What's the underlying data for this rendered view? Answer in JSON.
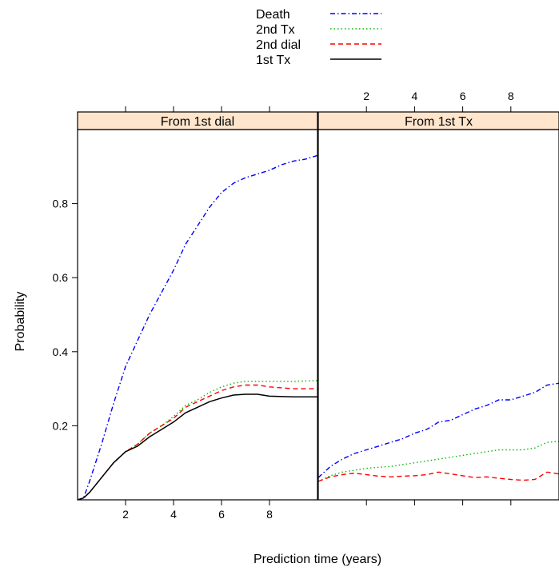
{
  "chart_data": {
    "type": "line",
    "xlabel": "Prediction time (years)",
    "ylabel": "Probability",
    "xlim": [
      0,
      10
    ],
    "ylim": [
      0,
      1
    ],
    "x_ticks": [
      2,
      4,
      6,
      8
    ],
    "y_ticks": [
      0.2,
      0.4,
      0.6,
      0.8
    ],
    "legend_position": "top-center",
    "legend": [
      {
        "name": "Death",
        "color": "#0000ff",
        "dash": "dot-dash"
      },
      {
        "name": "2nd Tx",
        "color": "#00bb00",
        "dash": "dotted"
      },
      {
        "name": "2nd dial",
        "color": "#ff0000",
        "dash": "dashed"
      },
      {
        "name": "1st Tx",
        "color": "#000000",
        "dash": "solid"
      }
    ],
    "panels": [
      {
        "title": "From 1st dial",
        "series": [
          {
            "name": "Death",
            "color": "#0000ff",
            "x": [
              0,
              0.25,
              0.5,
              1,
              1.5,
              2,
              2.5,
              3,
              3.5,
              4,
              4.5,
              5,
              5.5,
              6,
              6.5,
              7,
              7.5,
              8,
              8.5,
              9,
              9.5,
              10
            ],
            "y": [
              0.0,
              0.005,
              0.05,
              0.15,
              0.26,
              0.36,
              0.43,
              0.5,
              0.56,
              0.62,
              0.69,
              0.74,
              0.79,
              0.83,
              0.855,
              0.87,
              0.88,
              0.89,
              0.905,
              0.915,
              0.92,
              0.93
            ]
          },
          {
            "name": "2nd Tx",
            "color": "#00bb00",
            "x": [
              0,
              0.25,
              0.5,
              1,
              1.5,
              2,
              2.5,
              3,
              3.5,
              4,
              4.5,
              5,
              5.5,
              6,
              6.5,
              7,
              7.5,
              8,
              9,
              10
            ],
            "y": [
              0.0,
              0.005,
              0.02,
              0.06,
              0.1,
              0.13,
              0.15,
              0.18,
              0.2,
              0.225,
              0.255,
              0.27,
              0.29,
              0.305,
              0.315,
              0.32,
              0.32,
              0.32,
              0.32,
              0.322
            ]
          },
          {
            "name": "2nd dial",
            "color": "#ff0000",
            "x": [
              0,
              0.25,
              0.5,
              1,
              1.5,
              2,
              2.5,
              3,
              3.5,
              4,
              4.5,
              5,
              5.5,
              6,
              6.5,
              7,
              7.5,
              8,
              9,
              10
            ],
            "y": [
              0.0,
              0.005,
              0.02,
              0.06,
              0.1,
              0.13,
              0.15,
              0.18,
              0.2,
              0.22,
              0.25,
              0.265,
              0.28,
              0.295,
              0.305,
              0.31,
              0.31,
              0.305,
              0.3,
              0.3
            ]
          },
          {
            "name": "1st Tx",
            "color": "#000000",
            "x": [
              0,
              0.25,
              0.5,
              1,
              1.5,
              2,
              2.5,
              3,
              3.5,
              4,
              4.5,
              5,
              5.5,
              6,
              6.5,
              7,
              7.5,
              8,
              9,
              10
            ],
            "y": [
              0.0,
              0.005,
              0.02,
              0.06,
              0.1,
              0.13,
              0.145,
              0.17,
              0.19,
              0.21,
              0.235,
              0.25,
              0.265,
              0.275,
              0.283,
              0.285,
              0.285,
              0.28,
              0.278,
              0.278
            ]
          }
        ]
      },
      {
        "title": "From 1st Tx",
        "series": [
          {
            "name": "Death",
            "color": "#0000ff",
            "x": [
              0,
              0.5,
              1,
              1.5,
              2,
              2.5,
              3,
              3.5,
              4,
              4.5,
              5,
              5.5,
              6,
              6.5,
              7,
              7.5,
              8,
              8.5,
              9,
              9.5,
              10
            ],
            "y": [
              0.06,
              0.09,
              0.11,
              0.125,
              0.135,
              0.145,
              0.155,
              0.165,
              0.18,
              0.19,
              0.21,
              0.215,
              0.23,
              0.245,
              0.255,
              0.27,
              0.27,
              0.28,
              0.29,
              0.31,
              0.315
            ]
          },
          {
            "name": "2nd Tx",
            "color": "#00bb00",
            "x": [
              0,
              0.5,
              1,
              1.5,
              2,
              2.5,
              3,
              3.5,
              4,
              4.5,
              5,
              5.5,
              6,
              6.5,
              7,
              7.5,
              8,
              8.5,
              9,
              9.5,
              10
            ],
            "y": [
              0.05,
              0.065,
              0.075,
              0.08,
              0.085,
              0.088,
              0.09,
              0.095,
              0.1,
              0.105,
              0.11,
              0.115,
              0.12,
              0.125,
              0.13,
              0.135,
              0.135,
              0.135,
              0.14,
              0.155,
              0.158
            ]
          },
          {
            "name": "2nd dial",
            "color": "#ff0000",
            "x": [
              0,
              0.5,
              1,
              1.5,
              2,
              2.5,
              3,
              3.5,
              4,
              4.5,
              5,
              5.5,
              6,
              6.5,
              7,
              7.5,
              8,
              8.5,
              9,
              9.5,
              10
            ],
            "y": [
              0.05,
              0.062,
              0.068,
              0.072,
              0.068,
              0.064,
              0.062,
              0.064,
              0.065,
              0.068,
              0.075,
              0.07,
              0.065,
              0.06,
              0.062,
              0.058,
              0.055,
              0.053,
              0.055,
              0.075,
              0.07
            ]
          }
        ]
      }
    ]
  }
}
